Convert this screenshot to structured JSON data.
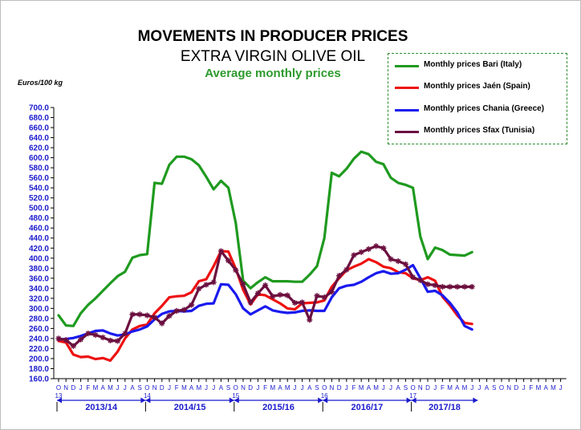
{
  "title": "MOVEMENTS IN PRODUCER PRICES",
  "subtitle": "EXTRA VIRGIN OLIVE OIL",
  "subtitle2": "Average monthly prices",
  "unit_label": "Euros/100 kg",
  "colors": {
    "bari": "#1f9a1f",
    "jaen": "#ee1111",
    "chania": "#1a1aee",
    "sfax": "#6b0f3f",
    "axis": "#1a1acc"
  },
  "chart_data": {
    "type": "line",
    "title": "MOVEMENTS IN PRODUCER PRICES",
    "ylabel": "Euros/100 kg",
    "ylim": [
      160,
      700
    ],
    "yticks": [
      "160.0",
      "180.0",
      "200.0",
      "220.0",
      "240.0",
      "260.0",
      "280.0",
      "300.0",
      "320.0",
      "340.0",
      "360.0",
      "380.0",
      "400.0",
      "420.0",
      "440.0",
      "460.0",
      "480.0",
      "500.0",
      "520.0",
      "540.0",
      "560.0",
      "580.0",
      "600.0",
      "620.0",
      "640.0",
      "660.0",
      "680.0",
      "700.0"
    ],
    "month_labels": [
      "O",
      "N",
      "D",
      "J",
      "F",
      "M",
      "A",
      "M",
      "J",
      "J",
      "A",
      "S",
      "O",
      "N",
      "D",
      "J",
      "F",
      "M",
      "A",
      "M",
      "J",
      "J",
      "A",
      "S",
      "O",
      "N",
      "D",
      "J",
      "F",
      "M",
      "A",
      "M",
      "J",
      "J",
      "A",
      "S",
      "O",
      "N",
      "D",
      "J",
      "F",
      "M",
      "A",
      "M",
      "J",
      "J",
      "A",
      "S",
      "O",
      "N",
      "D",
      "J",
      "F",
      "M",
      "A",
      "M",
      "J",
      "J",
      "A",
      "S",
      "O",
      "N",
      "D",
      "J",
      "F",
      "M",
      "A",
      "M",
      "J"
    ],
    "year_markers": [
      {
        "index": 0,
        "label": "13"
      },
      {
        "index": 12,
        "label": "14"
      },
      {
        "index": 24,
        "label": "15"
      },
      {
        "index": 36,
        "label": "16"
      },
      {
        "index": 48,
        "label": "17"
      }
    ],
    "seasons": [
      {
        "label": "2013/14",
        "start": 0,
        "end": 12
      },
      {
        "label": "2014/15",
        "start": 12,
        "end": 24
      },
      {
        "label": "2015/16",
        "start": 24,
        "end": 36
      },
      {
        "label": "2016/17",
        "start": 36,
        "end": 48
      },
      {
        "label": "2017/18",
        "start": 48,
        "end": 57
      }
    ],
    "grid": false,
    "legend_position": "top-right",
    "series": [
      {
        "name": "Monthly prices Bari (Italy)",
        "color": "#1f9a1f",
        "marker": "none",
        "values": [
          286,
          266,
          265,
          290,
          307,
          320,
          335,
          350,
          364,
          373,
          401,
          406,
          408,
          550,
          548,
          586,
          602,
          602,
          597,
          585,
          562,
          537,
          554,
          540,
          470,
          355,
          340,
          352,
          362,
          354,
          354,
          354,
          353,
          353,
          367,
          384,
          440,
          570,
          563,
          578,
          598,
          612,
          607,
          592,
          587,
          560,
          550,
          546,
          540,
          443,
          398,
          421,
          416,
          407,
          406,
          405,
          412
        ]
      },
      {
        "name": "Monthly prices Jaén (Spain)",
        "color": "#ee1111",
        "marker": "none",
        "values": [
          235,
          232,
          208,
          203,
          204,
          199,
          201,
          196,
          214,
          240,
          258,
          265,
          268,
          290,
          305,
          322,
          324,
          325,
          332,
          354,
          358,
          384,
          414,
          413,
          379,
          337,
          308,
          328,
          326,
          318,
          310,
          300,
          298,
          310,
          311,
          312,
          316,
          343,
          360,
          376,
          383,
          389,
          398,
          392,
          383,
          380,
          372,
          370,
          360,
          356,
          362,
          355,
          323,
          306,
          286,
          271,
          269
        ]
      },
      {
        "name": "Monthly prices Chania (Greece)",
        "color": "#1a1aee",
        "marker": "none",
        "values": [
          238,
          239,
          241,
          245,
          250,
          255,
          256,
          250,
          246,
          248,
          254,
          258,
          264,
          278,
          289,
          294,
          295,
          294,
          295,
          305,
          309,
          310,
          348,
          347,
          328,
          300,
          288,
          296,
          304,
          296,
          293,
          291,
          292,
          295,
          296,
          295,
          295,
          322,
          340,
          345,
          347,
          353,
          362,
          370,
          374,
          369,
          370,
          377,
          386,
          360,
          333,
          335,
          326,
          311,
          292,
          265,
          258
        ]
      },
      {
        "name": "Monthly prices Sfax (Tunisia)",
        "color": "#6b0f3f",
        "marker": "star",
        "values": [
          240,
          237,
          225,
          238,
          250,
          247,
          242,
          236,
          235,
          250,
          288,
          288,
          286,
          282,
          270,
          285,
          295,
          297,
          307,
          339,
          347,
          352,
          414,
          395,
          376,
          348,
          312,
          330,
          346,
          324,
          327,
          326,
          311,
          312,
          277,
          325,
          322,
          333,
          365,
          377,
          406,
          412,
          418,
          424,
          420,
          398,
          394,
          388,
          362,
          356,
          348,
          346,
          343,
          343,
          343,
          343,
          343
        ]
      }
    ]
  }
}
